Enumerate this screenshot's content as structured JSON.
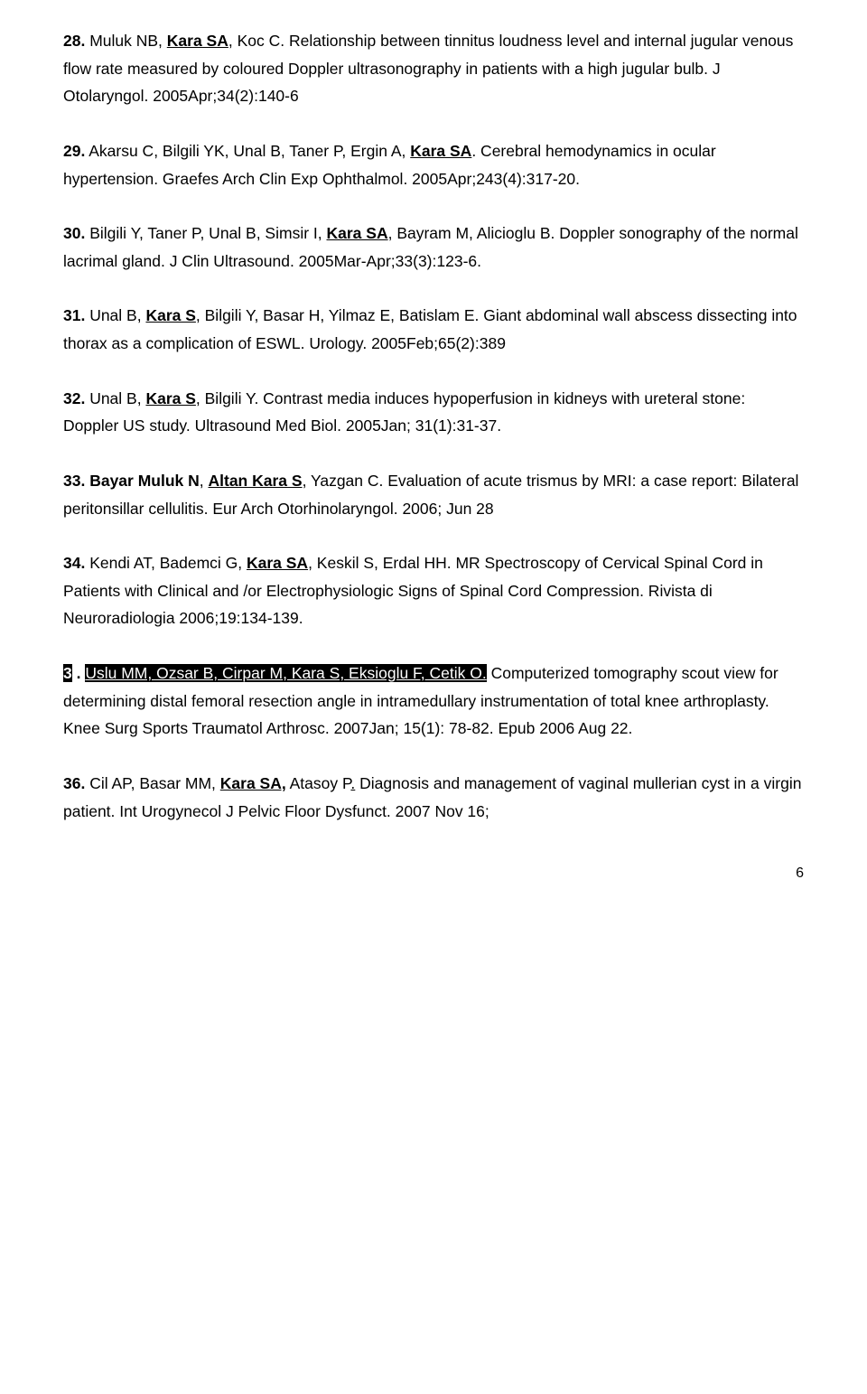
{
  "refs": [
    {
      "num": "28.",
      "authors_pre": " Muluk NB, ",
      "kara": "Kara SA",
      "authors_post": ", Koc C. Relationship between tinnitus loudness level and internal jugular venous flow rate measured by coloured Doppler ultrasonography in patients with a high jugular bulb. J Otolaryngol. 2005Apr;34(2):140-6"
    },
    {
      "num": "29.",
      "authors_pre": " Akarsu C, Bilgili YK, Unal B, Taner P, Ergin A, ",
      "kara": "Kara SA",
      "authors_post": ". Cerebral hemodynamics in ocular hypertension. Graefes Arch Clin Exp Ophthalmol. 2005Apr;243(4):317-20."
    },
    {
      "num": "30.",
      "authors_pre": " Bilgili Y, Taner P, Unal B, Simsir I, ",
      "kara": "Kara SA",
      "authors_post": ", Bayram M, Alicioglu B. Doppler sonography of the normal lacrimal gland. J Clin Ultrasound. 2005Mar-Apr;33(3):123-6."
    },
    {
      "num": "31.",
      "authors_pre": " Unal B, ",
      "kara": "Kara S",
      "authors_post": ", Bilgili Y, Basar H, Yilmaz E, Batislam E. Giant abdominal wall abscess dissecting into thorax as a complication of ESWL. Urology. 2005Feb;65(2):389"
    },
    {
      "num": "32.",
      "authors_pre": " Unal B, ",
      "kara": "Kara S",
      "authors_post": ", Bilgili Y. Contrast media induces hypoperfusion in kidneys with ureteral stone: Doppler US study. Ultrasound Med Biol. 2005Jan; 31(1):31-37."
    },
    {
      "num": "33.",
      "authors_pre": " ",
      "num_post": "Bayar Muluk N",
      "sep": ", ",
      "kara": "Altan Kara S",
      "authors_post": ", Yazgan C. Evaluation of acute trismus by MRI: a case report: Bilateral peritonsillar cellulitis. Eur Arch Otorhinolaryngol. 2006; Jun 28"
    },
    {
      "num": "34.",
      "authors_pre": " Kendi AT, Bademci G, ",
      "kara": "Kara SA",
      "authors_post": ", Keskil S, Erdal HH. MR Spectroscopy of Cervical Spinal Cord in Patients with Clinical and /or Electrophysiologic Signs of Spinal Cord Compression. Rivista di Neuroradiologia 2006;19:134-139."
    },
    {
      "special35_prefix": "3",
      "special35_dot": "  . ",
      "special35_hl": "Uslu MM, Ozsar B, Cirpar M, Kara S, Eksioglu F, Cetik O.",
      "special35_rest": " Computerized tomography scout view for determining distal femoral resection angle in intramedullary instrumentation of total knee arthroplasty. Knee Surg Sports Traumatol Arthrosc. 2007Jan; 15(1): 78-82. Epub 2006 Aug 22."
    },
    {
      "num": "36.",
      "authors_pre": " Cil AP, Basar MM, ",
      "kara": "Kara SA,",
      "authors_post": " Atasoy P",
      "dot_u": ".",
      "tail": "  Diagnosis and management of vaginal mullerian cyst in a virgin patient. Int Urogynecol J Pelvic Floor Dysfunct. 2007 Nov 16;"
    }
  ],
  "page_number": "6"
}
